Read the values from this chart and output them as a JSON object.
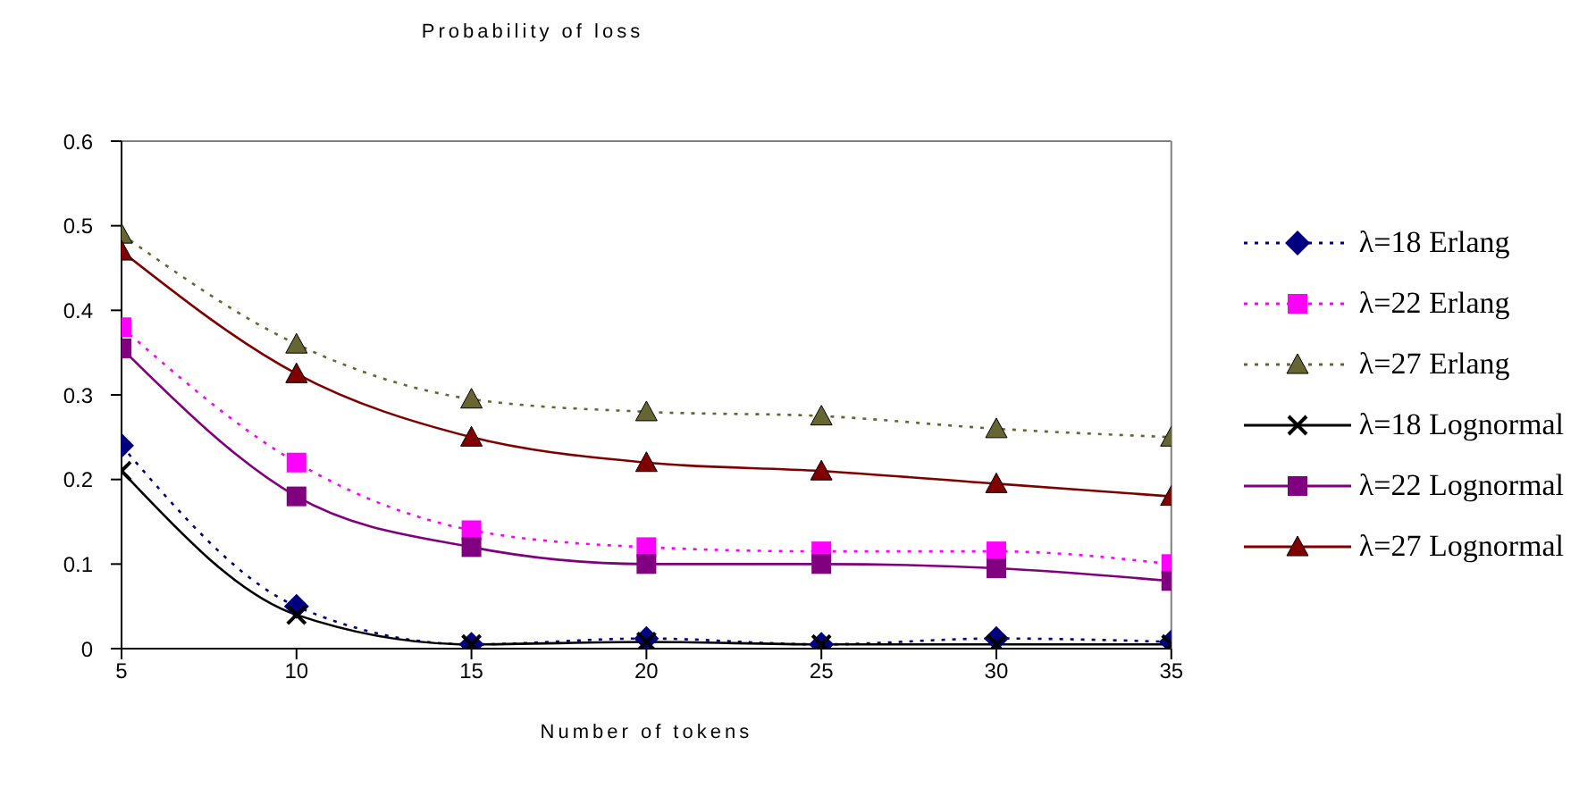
{
  "chart_data": {
    "type": "line",
    "title": "Probability of loss",
    "xlabel": "Number of tokens",
    "x": [
      5,
      10,
      15,
      20,
      25,
      30,
      35
    ],
    "xlim": [
      5,
      35
    ],
    "xticks": [
      5,
      10,
      15,
      20,
      25,
      30,
      35
    ],
    "ylim": [
      0,
      0.6
    ],
    "yticks": [
      {
        "value": 0,
        "label": "0"
      },
      {
        "value": 0.1,
        "label": "0.1"
      },
      {
        "value": 0.2,
        "label": "0.2"
      },
      {
        "value": 0.3,
        "label": "0.3"
      },
      {
        "value": 0.4,
        "label": "0.4"
      },
      {
        "value": 0.5,
        "label": "0.5"
      },
      {
        "value": 0.6,
        "label": "0.6"
      }
    ],
    "grid": false,
    "legend": "right",
    "series": [
      {
        "name": "λ=18 Erlang",
        "color": "#000080",
        "marker": "diamond",
        "line_style": "dotted",
        "values": [
          0.24,
          0.05,
          0.005,
          0.012,
          0.005,
          0.012,
          0.008
        ]
      },
      {
        "name": "λ=22 Erlang",
        "color": "#ff00ff",
        "marker": "square",
        "line_style": "dotted",
        "values": [
          0.38,
          0.22,
          0.14,
          0.12,
          0.115,
          0.115,
          0.1
        ]
      },
      {
        "name": "λ=27 Erlang",
        "color": "#666633",
        "marker": "triangle",
        "line_style": "dotted",
        "values": [
          0.49,
          0.36,
          0.295,
          0.28,
          0.275,
          0.26,
          0.25
        ]
      },
      {
        "name": "λ=18 Lognormal",
        "color": "#000000",
        "marker": "cross",
        "line_style": "solid",
        "values": [
          0.21,
          0.04,
          0.005,
          0.008,
          0.005,
          0.005,
          0.005
        ]
      },
      {
        "name": "λ=22 Lognormal",
        "color": "#800080",
        "marker": "square",
        "line_style": "solid",
        "values": [
          0.355,
          0.18,
          0.12,
          0.1,
          0.1,
          0.095,
          0.08
        ]
      },
      {
        "name": "λ=27 Lognormal",
        "color": "#800000",
        "marker": "triangle",
        "line_style": "solid",
        "values": [
          0.47,
          0.325,
          0.25,
          0.22,
          0.21,
          0.195,
          0.18
        ]
      }
    ]
  }
}
